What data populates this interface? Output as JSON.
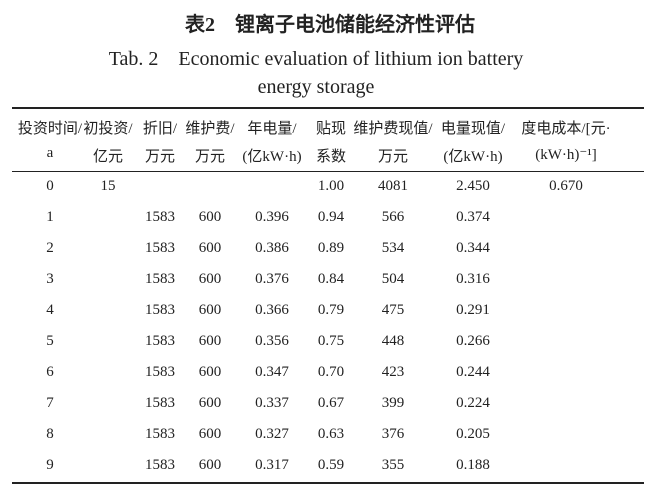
{
  "title": "表2　锂离子电池储能经济性评估",
  "subtitle": [
    "Tab. 2　Economic evaluation of lithium ion battery",
    "energy storage"
  ],
  "table": {
    "header": [
      [
        "投资时间/",
        "a"
      ],
      [
        "初投资/",
        "亿元"
      ],
      [
        "折旧/",
        "万元"
      ],
      [
        "维护费/",
        "万元"
      ],
      [
        "年电量/",
        "(亿kW·h)"
      ],
      [
        "贴现",
        "系数"
      ],
      [
        "维护费现值/",
        "万元"
      ],
      [
        "电量现值/",
        "(亿kW·h)"
      ],
      [
        "度电成本/[元·",
        "(kW·h)⁻¹]"
      ]
    ],
    "rows": [
      [
        "0",
        "15",
        null,
        null,
        null,
        "1.00",
        "4081",
        "2.450",
        "0.670"
      ],
      [
        "1",
        null,
        "1583",
        "600",
        "0.396",
        "0.94",
        "566",
        "0.374",
        null
      ],
      [
        "2",
        null,
        "1583",
        "600",
        "0.386",
        "0.89",
        "534",
        "0.344",
        null
      ],
      [
        "3",
        null,
        "1583",
        "600",
        "0.376",
        "0.84",
        "504",
        "0.316",
        null
      ],
      [
        "4",
        null,
        "1583",
        "600",
        "0.366",
        "0.79",
        "475",
        "0.291",
        null
      ],
      [
        "5",
        null,
        "1583",
        "600",
        "0.356",
        "0.75",
        "448",
        "0.266",
        null
      ],
      [
        "6",
        null,
        "1583",
        "600",
        "0.347",
        "0.70",
        "423",
        "0.244",
        null
      ],
      [
        "7",
        null,
        "1583",
        "600",
        "0.337",
        "0.67",
        "399",
        "0.224",
        null
      ],
      [
        "8",
        null,
        "1583",
        "600",
        "0.327",
        "0.63",
        "376",
        "0.205",
        null
      ],
      [
        "9",
        null,
        "1583",
        "600",
        "0.317",
        "0.59",
        "355",
        "0.188",
        null
      ]
    ]
  }
}
